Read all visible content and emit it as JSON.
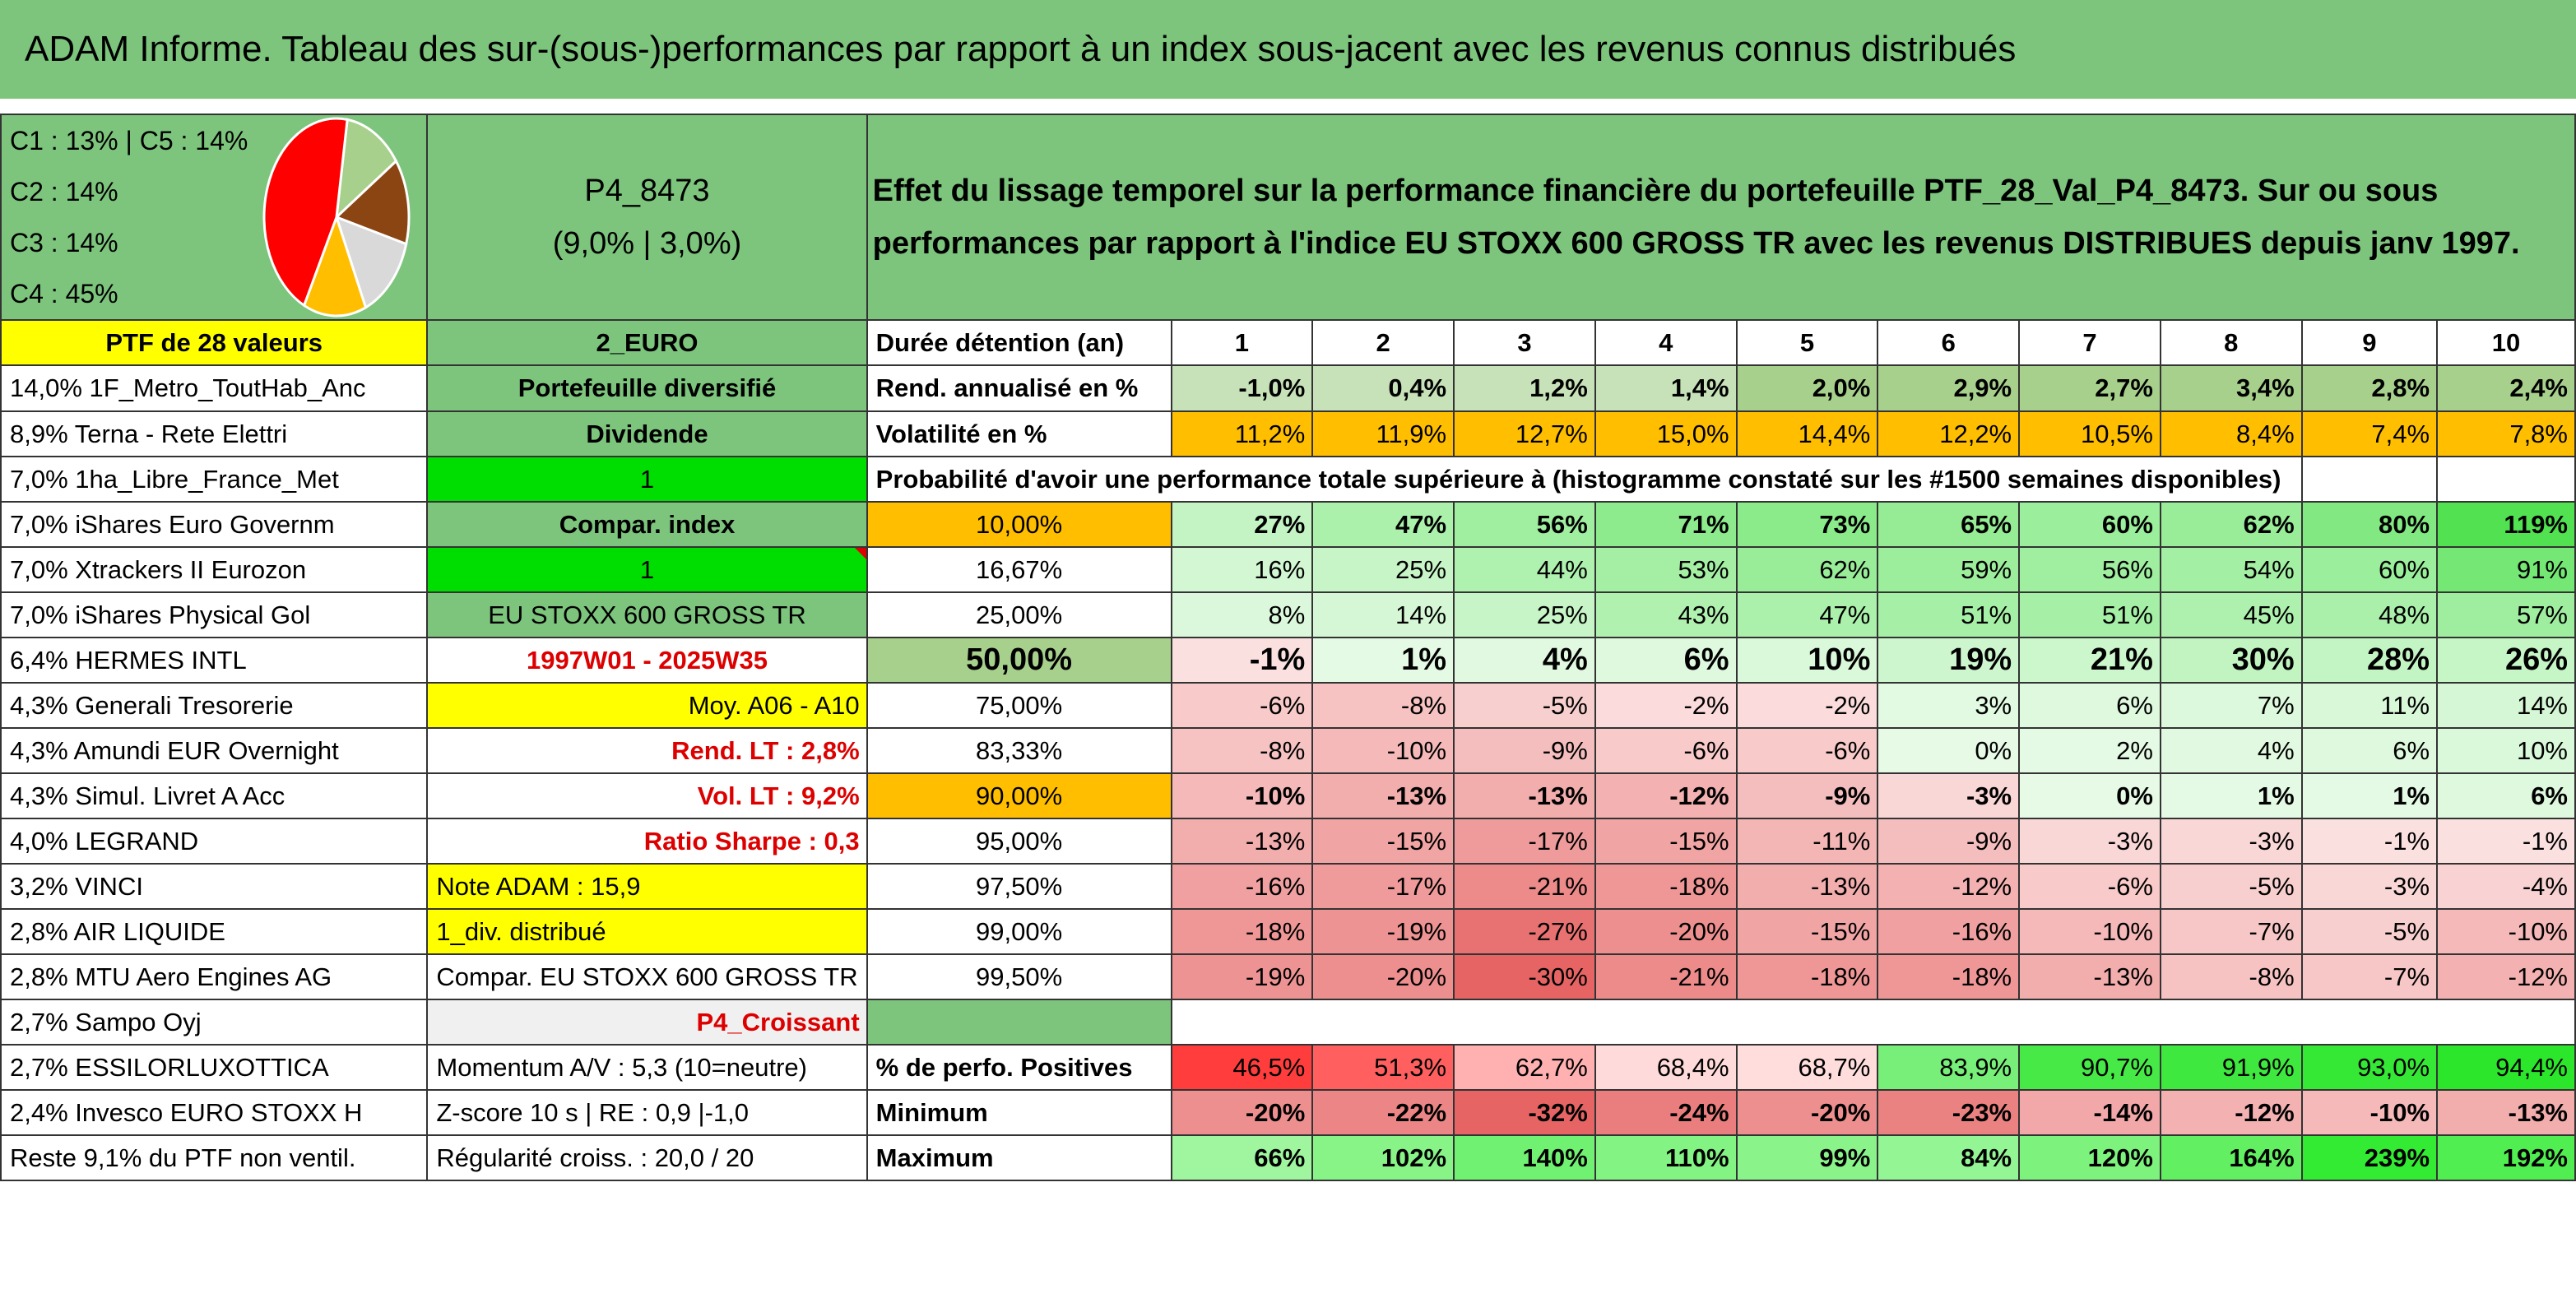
{
  "title": "ADAM Informe. Tableau des sur-(sous-)performances par rapport à un index sous-jacent avec les revenus connus distribués",
  "header": {
    "legend": [
      "C1 : 13% | C5 : 14%",
      "C2 : 14%",
      "C3 : 14%",
      "C4 : 45%"
    ],
    "pie": [
      {
        "label": "C1",
        "value": 13,
        "color": "#a8d08d"
      },
      {
        "label": "C5",
        "value": 14,
        "color": "#8b4513"
      },
      {
        "label": "C2",
        "value": 14,
        "color": "#d9d9d9"
      },
      {
        "label": "C3",
        "value": 14,
        "color": "#ffbf00"
      },
      {
        "label": "C4",
        "value": 45,
        "color": "#ff0000"
      }
    ],
    "portfolio_code": "P4_8473",
    "portfolio_params": "(9,0% | 3,0%)",
    "description": "Effet du lissage temporel sur la performance financière du portefeuille PTF_28_Val_P4_8473. Sur ou sous performances par rapport à l'indice EU STOXX 600 GROSS TR avec les revenus DISTRIBUES depuis janv 1997."
  },
  "holdings": [
    "PTF de 28 valeurs",
    "14,0% 1F_Metro_ToutHab_Anc",
    "8,9% Terna - Rete Elettri",
    "7,0% 1ha_Libre_France_Met",
    "7,0% iShares Euro Governm",
    "7,0% Xtrackers II Eurozon",
    "7,0% iShares Physical Gol",
    "6,4% HERMES INTL",
    "4,3% Generali Tresorerie",
    "4,3% Amundi EUR Overnight",
    "4,3% Simul. Livret A Acc",
    "4,0% LEGRAND",
    "3,2% VINCI",
    "2,8% AIR LIQUIDE",
    "2,8% MTU Aero Engines AG",
    "2,7% Sampo Oyj",
    "2,7% ESSILORLUXOTTICA",
    "2,4% Invesco EURO STOXX H",
    "Reste 9,1% du PTF non ventil."
  ],
  "params": [
    "2_EURO",
    "Portefeuille diversifié",
    "Dividende",
    "1",
    "Compar. index",
    "1",
    "EU STOXX 600 GROSS TR",
    "1997W01 - 2025W35",
    "Moy. A06 - A10",
    "Rend. LT : 2,8%",
    "Vol. LT : 9,2%",
    "Ratio Sharpe : 0,3",
    "Note ADAM : 15,9",
    "1_div. distribué",
    "Compar. EU STOXX 600 GROSS TR",
    "P4_Croissant",
    "Momentum A/V : 5,3 (10=neutre)",
    "Z-score 10 s | RE : 0,9 |-1,0",
    "Régularité croiss. : 20,0 / 20"
  ],
  "table": {
    "duration_label": "Durée détention (an)",
    "years": [
      "1",
      "2",
      "3",
      "4",
      "5",
      "6",
      "7",
      "8",
      "9",
      "10"
    ],
    "return_label": "Rend. annualisé en %",
    "returns": [
      "-1,0%",
      "0,4%",
      "1,2%",
      "1,4%",
      "2,0%",
      "2,9%",
      "2,7%",
      "3,4%",
      "2,8%",
      "2,4%"
    ],
    "vol_label": "Volatilité en %",
    "volatility": [
      "11,2%",
      "11,9%",
      "12,7%",
      "15,0%",
      "14,4%",
      "12,2%",
      "10,5%",
      "8,4%",
      "7,4%",
      "7,8%"
    ],
    "prob_title": "Probabilité d'avoir une performance totale supérieure à (histogramme constaté sur les #1500 semaines disponibles)",
    "prob_rows": [
      {
        "p": "10,00%",
        "v": [
          "27%",
          "47%",
          "56%",
          "71%",
          "73%",
          "65%",
          "60%",
          "62%",
          "80%",
          "119%"
        ]
      },
      {
        "p": "16,67%",
        "v": [
          "16%",
          "25%",
          "44%",
          "53%",
          "62%",
          "59%",
          "56%",
          "54%",
          "60%",
          "91%"
        ]
      },
      {
        "p": "25,00%",
        "v": [
          "8%",
          "14%",
          "25%",
          "43%",
          "47%",
          "51%",
          "51%",
          "45%",
          "48%",
          "57%"
        ]
      },
      {
        "p": "50,00%",
        "v": [
          "-1%",
          "1%",
          "4%",
          "6%",
          "10%",
          "19%",
          "21%",
          "30%",
          "28%",
          "26%"
        ]
      },
      {
        "p": "75,00%",
        "v": [
          "-6%",
          "-8%",
          "-5%",
          "-2%",
          "-2%",
          "3%",
          "6%",
          "7%",
          "11%",
          "14%"
        ]
      },
      {
        "p": "83,33%",
        "v": [
          "-8%",
          "-10%",
          "-9%",
          "-6%",
          "-6%",
          "0%",
          "2%",
          "4%",
          "6%",
          "10%"
        ]
      },
      {
        "p": "90,00%",
        "v": [
          "-10%",
          "-13%",
          "-13%",
          "-12%",
          "-9%",
          "-3%",
          "0%",
          "1%",
          "1%",
          "6%"
        ]
      },
      {
        "p": "95,00%",
        "v": [
          "-13%",
          "-15%",
          "-17%",
          "-15%",
          "-11%",
          "-9%",
          "-3%",
          "-3%",
          "-1%",
          "-1%"
        ]
      },
      {
        "p": "97,50%",
        "v": [
          "-16%",
          "-17%",
          "-21%",
          "-18%",
          "-13%",
          "-12%",
          "-6%",
          "-5%",
          "-3%",
          "-4%"
        ]
      },
      {
        "p": "99,00%",
        "v": [
          "-18%",
          "-19%",
          "-27%",
          "-20%",
          "-15%",
          "-16%",
          "-10%",
          "-7%",
          "-5%",
          "-10%"
        ]
      },
      {
        "p": "99,50%",
        "v": [
          "-19%",
          "-20%",
          "-30%",
          "-21%",
          "-18%",
          "-18%",
          "-13%",
          "-8%",
          "-7%",
          "-12%"
        ]
      }
    ],
    "pos_label": "% de perfo. Positives",
    "positives": [
      "46,5%",
      "51,3%",
      "62,7%",
      "68,4%",
      "68,7%",
      "83,9%",
      "90,7%",
      "91,9%",
      "93,0%",
      "94,4%"
    ],
    "min_label": "Minimum",
    "minimum": [
      "-20%",
      "-22%",
      "-32%",
      "-24%",
      "-20%",
      "-23%",
      "-14%",
      "-12%",
      "-10%",
      "-13%"
    ],
    "max_label": "Maximum",
    "maximum": [
      "66%",
      "102%",
      "140%",
      "110%",
      "99%",
      "84%",
      "120%",
      "164%",
      "239%",
      "192%"
    ]
  },
  "colors": {
    "header_green": "#7dc47d",
    "yellow": "#ffff00",
    "bright_green": "#00dd00",
    "orange": "#ffbf00",
    "red_text": "#dd0000"
  }
}
